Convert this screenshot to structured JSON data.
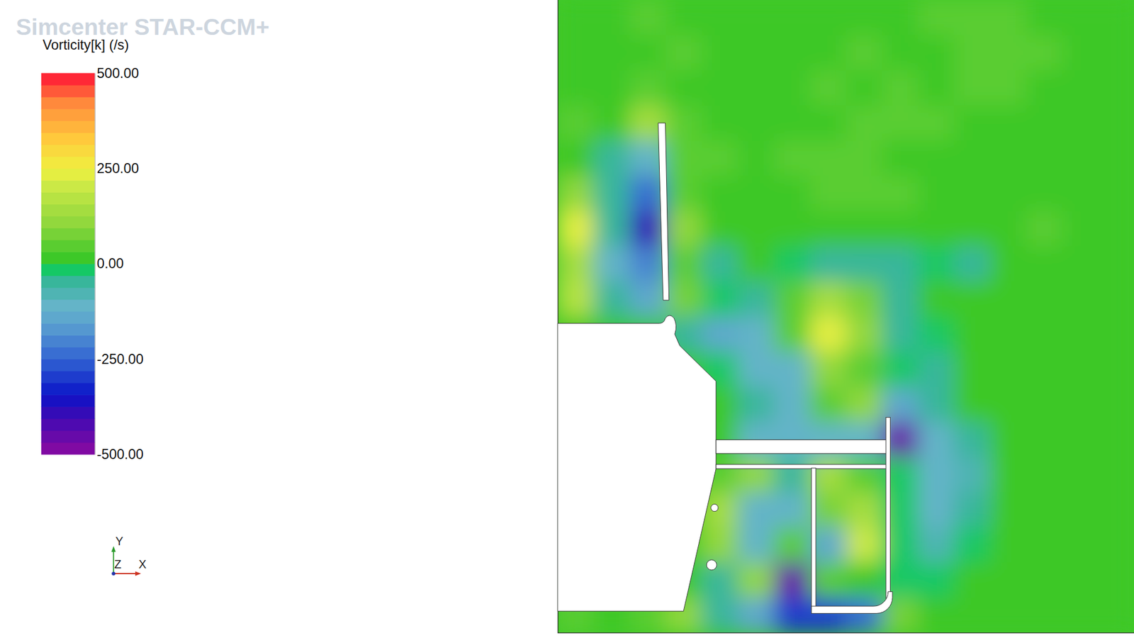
{
  "chart_data": {
    "type": "contour",
    "title": "Vorticity[k] (/s)",
    "watermark": "Simcenter STAR-CCM+",
    "axis_triad": [
      "X",
      "Y",
      "Z"
    ],
    "tick_labels": false,
    "colorbar": {
      "range": [
        -500,
        500
      ],
      "ticks": [
        {
          "value": 500,
          "label": "500.00"
        },
        {
          "value": 250,
          "label": "250.00"
        },
        {
          "value": 0,
          "label": "0.00"
        },
        {
          "value": -250,
          "label": "-250.00"
        },
        {
          "value": -500,
          "label": "-500.00"
        }
      ]
    },
    "z": [
      [
        30,
        20,
        40,
        20,
        20,
        30,
        20,
        20,
        20,
        30,
        60,
        40,
        40,
        20,
        20,
        20
      ],
      [
        30,
        30,
        20,
        40,
        20,
        20,
        30,
        20,
        40,
        20,
        30,
        50,
        60,
        60,
        20,
        20
      ],
      [
        20,
        30,
        60,
        20,
        30,
        20,
        30,
        40,
        30,
        40,
        20,
        40,
        40,
        20,
        20,
        20
      ],
      [
        40,
        20,
        150,
        40,
        30,
        20,
        30,
        30,
        40,
        40,
        40,
        20,
        20,
        20,
        20,
        20
      ],
      [
        20,
        -60,
        -100,
        60,
        40,
        30,
        40,
        40,
        60,
        20,
        20,
        20,
        20,
        20,
        20,
        20
      ],
      [
        120,
        -60,
        -250,
        60,
        20,
        20,
        30,
        40,
        40,
        40,
        20,
        20,
        20,
        20,
        20,
        20
      ],
      [
        230,
        -40,
        -400,
        100,
        0,
        20,
        20,
        20,
        20,
        20,
        20,
        20,
        20,
        40,
        20,
        20
      ],
      [
        150,
        -120,
        -200,
        60,
        -60,
        20,
        -20,
        -40,
        -60,
        -40,
        -10,
        -40,
        20,
        20,
        20,
        20
      ],
      [
        180,
        -60,
        -150,
        80,
        -30,
        -60,
        40,
        150,
        80,
        -40,
        20,
        20,
        20,
        20,
        20,
        20
      ],
      [
        0,
        0,
        0,
        -60,
        -150,
        -120,
        60,
        230,
        100,
        -40,
        -30,
        20,
        20,
        20,
        20,
        20
      ],
      [
        0,
        0,
        0,
        0,
        -30,
        -120,
        -100,
        120,
        40,
        -20,
        -40,
        20,
        20,
        20,
        20,
        20
      ],
      [
        0,
        0,
        0,
        0,
        20,
        -40,
        -120,
        60,
        120,
        -150,
        -40,
        20,
        20,
        20,
        20,
        20
      ],
      [
        0,
        0,
        0,
        0,
        0,
        -100,
        -100,
        -100,
        -100,
        -450,
        -100,
        -60,
        20,
        20,
        20,
        20
      ],
      [
        0,
        0,
        0,
        0,
        60,
        120,
        -40,
        150,
        60,
        -30,
        -100,
        -80,
        20,
        20,
        20,
        20
      ],
      [
        0,
        0,
        0,
        0,
        150,
        -120,
        -100,
        80,
        150,
        -20,
        -120,
        -60,
        20,
        20,
        20,
        20
      ],
      [
        0,
        0,
        0,
        0,
        100,
        -100,
        60,
        -150,
        200,
        -20,
        -80,
        -20,
        20,
        20,
        20,
        20
      ],
      [
        0,
        0,
        0,
        0,
        -50,
        100,
        -450,
        40,
        20,
        -10,
        -20,
        20,
        20,
        20,
        20,
        20
      ],
      [
        40,
        30,
        60,
        120,
        -60,
        -150,
        -300,
        -300,
        -250,
        80,
        20,
        20,
        20,
        20,
        20,
        20
      ]
    ]
  }
}
